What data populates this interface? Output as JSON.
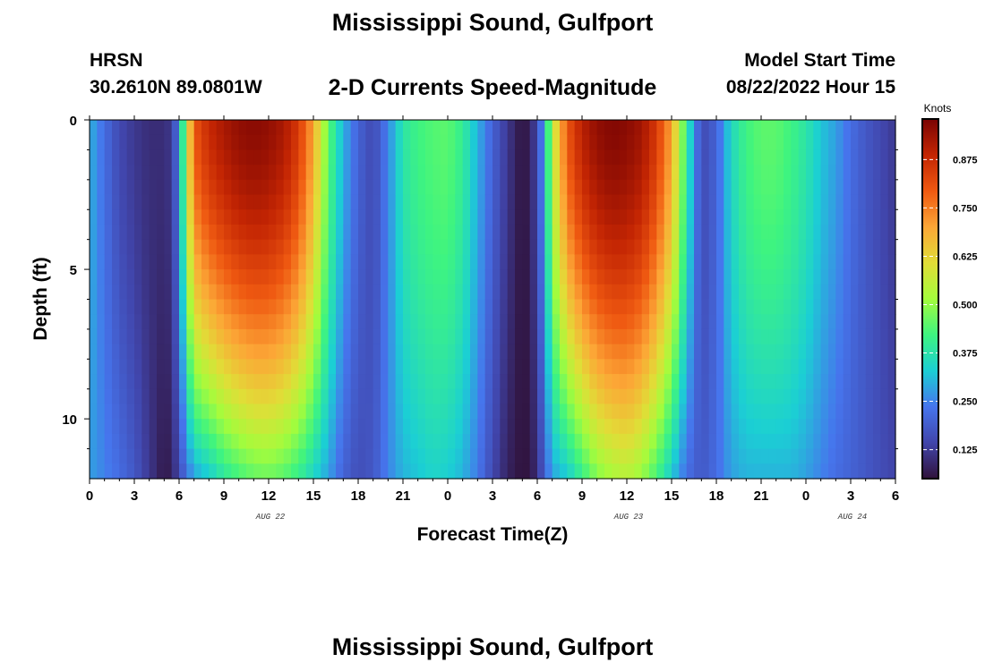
{
  "header": {
    "title": "Mississippi Sound, Gulfport",
    "station": "HRSN",
    "coordinates": "30.2610N  89.0801W",
    "subtitle": "2-D Currents Speed-Magnitude",
    "model_start_label": "Model Start Time",
    "model_start_value": "08/22/2022 Hour 15"
  },
  "footer": {
    "title": "Mississippi Sound, Gulfport"
  },
  "chart_data": {
    "type": "heatmap",
    "xlabel": "Forecast Time(Z)",
    "ylabel": "Depth (ft)",
    "x_tick_labels": [
      "0",
      "3",
      "6",
      "9",
      "12",
      "15",
      "18",
      "21",
      "0",
      "3",
      "6",
      "9",
      "12",
      "15",
      "18",
      "21",
      "0",
      "3",
      "6"
    ],
    "x_range_hours": [
      0,
      54
    ],
    "y_tick_labels": [
      "0",
      "5",
      "10"
    ],
    "ylim": [
      0,
      12
    ],
    "y_inverted": true,
    "day_labels": [
      {
        "text": "AUG 22",
        "hour": 12
      },
      {
        "text": "AUG 23",
        "hour": 36
      },
      {
        "text": "AUG 24",
        "hour": 51
      }
    ],
    "colorbar": {
      "title": "Knots",
      "range": [
        0.05,
        0.98
      ],
      "ticks": [
        0.125,
        0.25,
        0.375,
        0.5,
        0.625,
        0.75,
        0.875
      ],
      "tick_labels": [
        "0.125",
        "0.250",
        "0.375",
        "0.500",
        "0.625",
        "0.750",
        "0.875"
      ],
      "colormap": "turbo"
    },
    "speed_profile_knots": {
      "note_hours": [
        0,
        1,
        2,
        3,
        4,
        5,
        5.5,
        6,
        6.5,
        7,
        8,
        9,
        10,
        11,
        12,
        13,
        14,
        15,
        16,
        17,
        18,
        19,
        20,
        21,
        22,
        23,
        24,
        25,
        26,
        27,
        28,
        29,
        29.5,
        30,
        30.5,
        31,
        32,
        33,
        34,
        35,
        36,
        37,
        38,
        39,
        40,
        41,
        42,
        43,
        44,
        45,
        46,
        47,
        48,
        49,
        50,
        51,
        52,
        53,
        54
      ],
      "surface": [
        0.3,
        0.22,
        0.15,
        0.12,
        0.1,
        0.1,
        0.12,
        0.25,
        0.55,
        0.8,
        0.88,
        0.92,
        0.95,
        0.96,
        0.95,
        0.92,
        0.85,
        0.7,
        0.45,
        0.3,
        0.2,
        0.15,
        0.25,
        0.38,
        0.42,
        0.44,
        0.45,
        0.4,
        0.3,
        0.2,
        0.12,
        0.05,
        0.08,
        0.15,
        0.3,
        0.55,
        0.8,
        0.9,
        0.95,
        0.97,
        0.96,
        0.93,
        0.85,
        0.7,
        0.4,
        0.15,
        0.2,
        0.35,
        0.42,
        0.45,
        0.45,
        0.42,
        0.38,
        0.32,
        0.28,
        0.22,
        0.18,
        0.15,
        0.12
      ],
      "bottom": [
        0.28,
        0.25,
        0.22,
        0.18,
        0.12,
        0.06,
        0.08,
        0.15,
        0.22,
        0.28,
        0.32,
        0.38,
        0.42,
        0.45,
        0.46,
        0.44,
        0.4,
        0.34,
        0.28,
        0.2,
        0.16,
        0.18,
        0.25,
        0.3,
        0.32,
        0.34,
        0.33,
        0.3,
        0.24,
        0.15,
        0.08,
        0.05,
        0.06,
        0.1,
        0.2,
        0.28,
        0.32,
        0.4,
        0.48,
        0.52,
        0.54,
        0.5,
        0.42,
        0.32,
        0.22,
        0.18,
        0.22,
        0.28,
        0.3,
        0.3,
        0.3,
        0.3,
        0.28,
        0.25,
        0.22,
        0.2,
        0.18,
        0.16,
        0.14
      ]
    }
  }
}
